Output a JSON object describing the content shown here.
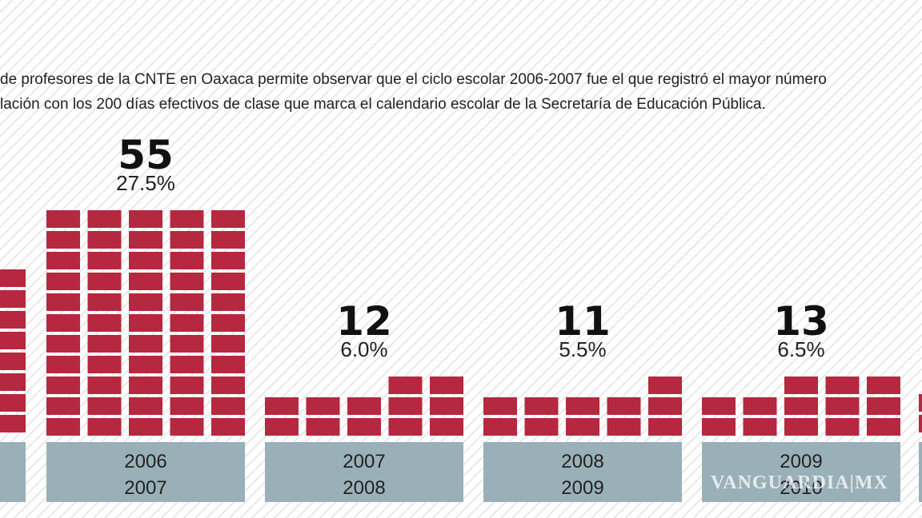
{
  "intro": [
    "de profesores de la CNTE en Oaxaca permite observar que el ciclo escolar 2006-2007 fue el que registró el mayor número",
    "lación con los 200 días efectivos de clase que marca el calendario escolar de la Secretaría de Educación Pública."
  ],
  "watermark": "VANGUARDIA|MX",
  "chart_data": {
    "type": "pictogram",
    "categories": [
      [
        "2006",
        "2007"
      ],
      [
        "2007",
        "2008"
      ],
      [
        "2008",
        "2009"
      ],
      [
        "2009",
        "2010"
      ]
    ],
    "values": [
      55,
      12,
      11,
      13
    ],
    "shares": [
      27.5,
      6.0,
      5.5,
      6.5
    ],
    "share_labels": [
      "27.5%",
      "6.0%",
      "5.5%",
      "6.5%"
    ],
    "color": "#b5283f"
  }
}
